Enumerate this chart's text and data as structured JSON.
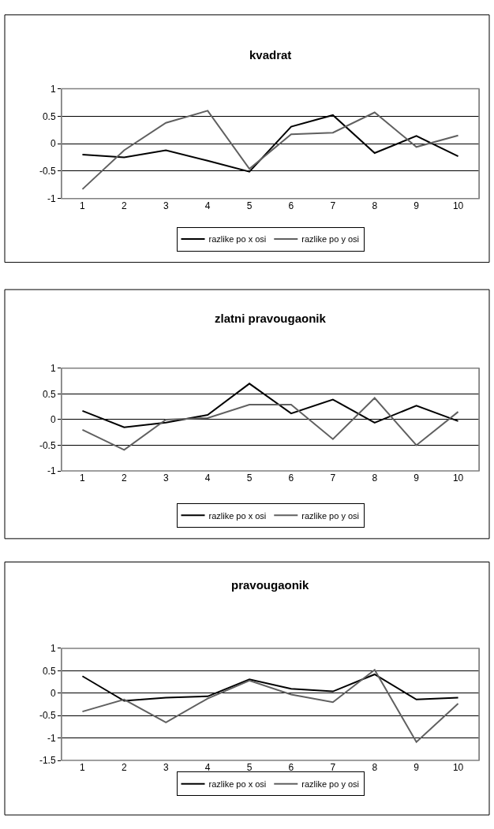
{
  "chart_data": [
    {
      "type": "line",
      "title": "kvadrat",
      "categories": [
        "1",
        "2",
        "3",
        "4",
        "5",
        "6",
        "7",
        "8",
        "9",
        "10"
      ],
      "series": [
        {
          "name": "razlike po x osi",
          "color": "#000000",
          "values": [
            -0.2,
            -0.25,
            -0.12,
            -0.31,
            -0.51,
            0.31,
            0.52,
            -0.17,
            0.14,
            -0.23
          ]
        },
        {
          "name": "razlike po y osi",
          "color": "#606060",
          "values": [
            -0.83,
            -0.12,
            0.38,
            0.6,
            -0.46,
            0.17,
            0.2,
            0.57,
            -0.06,
            0.15
          ]
        }
      ],
      "ylim": [
        -1,
        1
      ],
      "yticks": [
        -1,
        -0.5,
        0,
        0.5,
        1
      ],
      "grid": "y",
      "legend": "bottom"
    },
    {
      "type": "line",
      "title": "zlatni pravougaonik",
      "categories": [
        "1",
        "2",
        "3",
        "4",
        "5",
        "6",
        "7",
        "8",
        "9",
        "10"
      ],
      "series": [
        {
          "name": "razlike po x osi",
          "color": "#000000",
          "values": [
            0.17,
            -0.15,
            -0.06,
            0.09,
            0.7,
            0.12,
            0.39,
            -0.06,
            0.27,
            -0.03
          ]
        },
        {
          "name": "razlike po y osi",
          "color": "#606060",
          "values": [
            -0.2,
            -0.59,
            0,
            0.03,
            0.29,
            0.29,
            -0.38,
            0.42,
            -0.5,
            0.15
          ]
        }
      ],
      "ylim": [
        -1,
        1
      ],
      "yticks": [
        -1,
        -0.5,
        0,
        0.5,
        1
      ],
      "grid": "y",
      "legend": "bottom"
    },
    {
      "type": "line",
      "title": "pravougaonik",
      "categories": [
        "1",
        "2",
        "3",
        "4",
        "5",
        "6",
        "7",
        "8",
        "9",
        "10"
      ],
      "series": [
        {
          "name": "razlike po x osi",
          "color": "#000000",
          "values": [
            0.38,
            -0.17,
            -0.1,
            -0.07,
            0.31,
            0.1,
            0.04,
            0.42,
            -0.14,
            -0.1
          ]
        },
        {
          "name": "razlike po y osi",
          "color": "#606060",
          "values": [
            -0.41,
            -0.14,
            -0.65,
            -0.12,
            0.28,
            -0.03,
            -0.2,
            0.52,
            -1.09,
            -0.23
          ]
        }
      ],
      "ylim": [
        -1.5,
        1
      ],
      "yticks": [
        -1.5,
        -1,
        -0.5,
        0,
        0.5,
        1
      ],
      "grid": "y",
      "legend": "bottom"
    }
  ]
}
